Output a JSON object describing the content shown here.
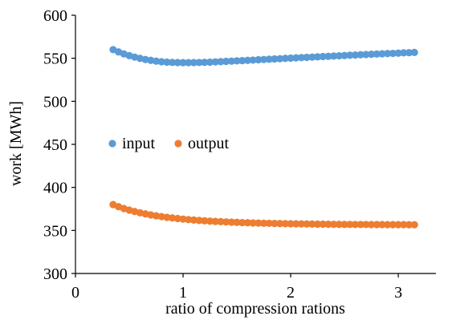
{
  "chart_data": {
    "type": "scatter",
    "xlabel": "ratio of compression rations",
    "ylabel": "work [MWh]",
    "xlim": [
      0,
      3.35
    ],
    "ylim": [
      300,
      600
    ],
    "x_ticks": [
      0,
      1,
      2,
      3
    ],
    "y_ticks": [
      300,
      350,
      400,
      450,
      500,
      550,
      600
    ],
    "grid": false,
    "legend_position": "middle-left",
    "series": [
      {
        "name": "input",
        "color": "#5b9bd5",
        "x": [
          0.35,
          0.4,
          0.45,
          0.5,
          0.55,
          0.6,
          0.65,
          0.7,
          0.75,
          0.8,
          0.85,
          0.9,
          0.95,
          1.0,
          1.05,
          1.1,
          1.15,
          1.2,
          1.25,
          1.3,
          1.35,
          1.4,
          1.45,
          1.5,
          1.55,
          1.6,
          1.65,
          1.7,
          1.75,
          1.8,
          1.85,
          1.9,
          1.95,
          2.0,
          2.05,
          2.1,
          2.15,
          2.2,
          2.25,
          2.3,
          2.35,
          2.4,
          2.45,
          2.5,
          2.55,
          2.6,
          2.65,
          2.7,
          2.75,
          2.8,
          2.85,
          2.9,
          2.95,
          3.0,
          3.05,
          3.1,
          3.15
        ],
        "y": [
          560.0,
          557.4,
          555.1,
          553.1,
          551.4,
          549.9,
          548.6,
          547.6,
          546.7,
          546.0,
          545.5,
          545.2,
          545.0,
          544.9,
          544.9,
          545.0,
          545.1,
          545.3,
          545.5,
          545.8,
          546.1,
          546.4,
          546.7,
          547.0,
          547.3,
          547.6,
          547.9,
          548.3,
          548.6,
          548.9,
          549.2,
          549.5,
          549.9,
          550.2,
          550.5,
          550.8,
          551.1,
          551.4,
          551.7,
          552.0,
          552.3,
          552.6,
          552.9,
          553.2,
          553.5,
          553.8,
          554.1,
          554.4,
          554.7,
          554.9,
          555.2,
          555.5,
          555.7,
          556.0,
          556.3,
          556.5,
          556.8
        ]
      },
      {
        "name": "output",
        "color": "#ed7d31",
        "x": [
          0.35,
          0.4,
          0.45,
          0.5,
          0.55,
          0.6,
          0.65,
          0.7,
          0.75,
          0.8,
          0.85,
          0.9,
          0.95,
          1.0,
          1.05,
          1.1,
          1.15,
          1.2,
          1.25,
          1.3,
          1.35,
          1.4,
          1.45,
          1.5,
          1.55,
          1.6,
          1.65,
          1.7,
          1.75,
          1.8,
          1.85,
          1.9,
          1.95,
          2.0,
          2.05,
          2.1,
          2.15,
          2.2,
          2.25,
          2.3,
          2.35,
          2.4,
          2.45,
          2.5,
          2.55,
          2.6,
          2.65,
          2.7,
          2.75,
          2.8,
          2.85,
          2.9,
          2.95,
          3.0,
          3.05,
          3.1,
          3.15
        ],
        "y": [
          380.0,
          377.6,
          375.5,
          373.6,
          372.0,
          370.5,
          369.2,
          368.0,
          367.0,
          366.1,
          365.2,
          364.5,
          363.8,
          363.2,
          362.6,
          362.1,
          361.6,
          361.2,
          360.8,
          360.5,
          360.2,
          359.9,
          359.6,
          359.4,
          359.1,
          358.9,
          358.7,
          358.6,
          358.4,
          358.3,
          358.1,
          358.0,
          357.9,
          357.8,
          357.7,
          357.6,
          357.5,
          357.4,
          357.3,
          357.3,
          357.2,
          357.1,
          357.1,
          357.0,
          357.0,
          356.9,
          356.9,
          356.9,
          356.8,
          356.8,
          356.8,
          356.7,
          356.7,
          356.7,
          356.7,
          356.6,
          356.6
        ]
      }
    ]
  }
}
